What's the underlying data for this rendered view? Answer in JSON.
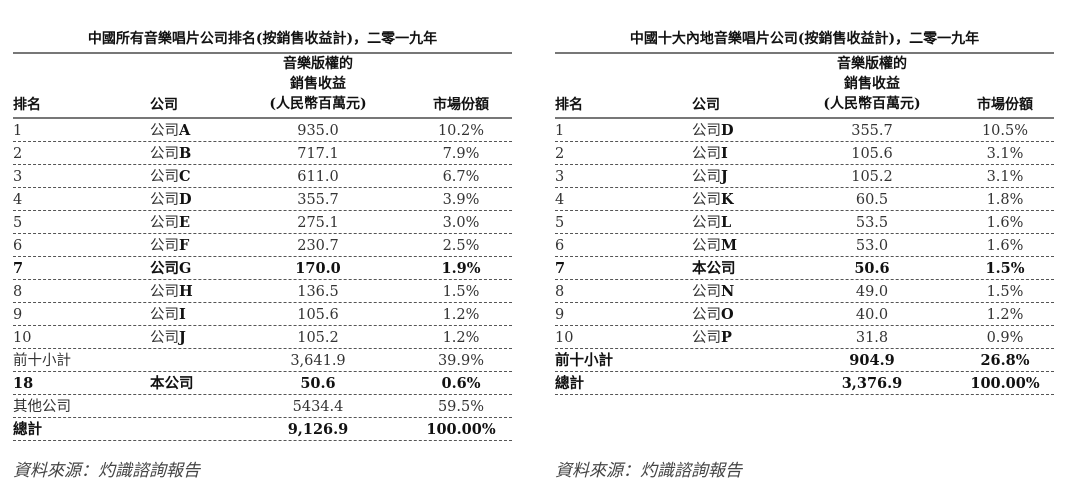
{
  "tables": [
    {
      "title": "中國所有音樂唱片公司排名(按銷售收益計)，二零一九年",
      "headers": {
        "rank": "排名",
        "company": "公司",
        "revenue_l1": "音樂版權的",
        "revenue_l2": "銷售收益",
        "revenue_l3": "(人民幣百萬元)",
        "share": "市場份額"
      },
      "rows": [
        {
          "rank": "1",
          "prefix": "公司",
          "letter": "A",
          "revenue": "935.0",
          "share": "10.2%",
          "bold": false
        },
        {
          "rank": "2",
          "prefix": "公司",
          "letter": "B",
          "revenue": "717.1",
          "share": "7.9%",
          "bold": false
        },
        {
          "rank": "3",
          "prefix": "公司",
          "letter": "C",
          "revenue": "611.0",
          "share": "6.7%",
          "bold": false
        },
        {
          "rank": "4",
          "prefix": "公司",
          "letter": "D",
          "revenue": "355.7",
          "share": "3.9%",
          "bold": false
        },
        {
          "rank": "5",
          "prefix": "公司",
          "letter": "E",
          "revenue": "275.1",
          "share": "3.0%",
          "bold": false
        },
        {
          "rank": "6",
          "prefix": "公司",
          "letter": "F",
          "revenue": "230.7",
          "share": "2.5%",
          "bold": false
        },
        {
          "rank": "7",
          "prefix": "公司",
          "letter": "G",
          "revenue": "170.0",
          "share": "1.9%",
          "bold": true
        },
        {
          "rank": "8",
          "prefix": "公司",
          "letter": "H",
          "revenue": "136.5",
          "share": "1.5%",
          "bold": false
        },
        {
          "rank": "9",
          "prefix": "公司",
          "letter": "I",
          "revenue": "105.6",
          "share": "1.2%",
          "bold": false
        },
        {
          "rank": "10",
          "prefix": "公司",
          "letter": "J",
          "revenue": "105.2",
          "share": "1.2%",
          "bold": false
        },
        {
          "rank": "前十小計",
          "prefix": "",
          "letter": "",
          "revenue": "3,641.9",
          "share": "39.9%",
          "bold": false
        },
        {
          "rank": "18",
          "prefix": "本公司",
          "letter": "",
          "revenue": "50.6",
          "share": "0.6%",
          "bold": true
        },
        {
          "rank": "其他公司",
          "prefix": "",
          "letter": "",
          "revenue": "5434.4",
          "share": "59.5%",
          "bold": false
        },
        {
          "rank": "總計",
          "prefix": "",
          "letter": "",
          "revenue": "9,126.9",
          "share": "100.00%",
          "bold": true
        }
      ],
      "source": "資料來源：灼識諮詢報告"
    },
    {
      "title": "中國十大內地音樂唱片公司(按銷售收益計)，二零一九年",
      "headers": {
        "rank": "排名",
        "company": "公司",
        "revenue_l1": "音樂版權的",
        "revenue_l2": "銷售收益",
        "revenue_l3": "(人民幣百萬元)",
        "share": "市場份額"
      },
      "rows": [
        {
          "rank": "1",
          "prefix": "公司",
          "letter": "D",
          "revenue": "355.7",
          "share": "10.5%",
          "bold": false
        },
        {
          "rank": "2",
          "prefix": "公司",
          "letter": "I",
          "revenue": "105.6",
          "share": "3.1%",
          "bold": false
        },
        {
          "rank": "3",
          "prefix": "公司",
          "letter": "J",
          "revenue": "105.2",
          "share": "3.1%",
          "bold": false
        },
        {
          "rank": "4",
          "prefix": "公司",
          "letter": "K",
          "revenue": "60.5",
          "share": "1.8%",
          "bold": false
        },
        {
          "rank": "5",
          "prefix": "公司",
          "letter": "L",
          "revenue": "53.5",
          "share": "1.6%",
          "bold": false
        },
        {
          "rank": "6",
          "prefix": "公司",
          "letter": "M",
          "revenue": "53.0",
          "share": "1.6%",
          "bold": false
        },
        {
          "rank": "7",
          "prefix": "本公司",
          "letter": "",
          "revenue": "50.6",
          "share": "1.5%",
          "bold": true
        },
        {
          "rank": "8",
          "prefix": "公司",
          "letter": "N",
          "revenue": "49.0",
          "share": "1.5%",
          "bold": false
        },
        {
          "rank": "9",
          "prefix": "公司",
          "letter": "O",
          "revenue": "40.0",
          "share": "1.2%",
          "bold": false
        },
        {
          "rank": "10",
          "prefix": "公司",
          "letter": "P",
          "revenue": "31.8",
          "share": "0.9%",
          "bold": false
        },
        {
          "rank": "前十小計",
          "prefix": "",
          "letter": "",
          "revenue": "904.9",
          "share": "26.8%",
          "bold": true
        },
        {
          "rank": "總計",
          "prefix": "",
          "letter": "",
          "revenue": "3,376.9",
          "share": "100.00%",
          "bold": true
        }
      ],
      "source": "資料來源：灼識諮詢報告"
    }
  ]
}
